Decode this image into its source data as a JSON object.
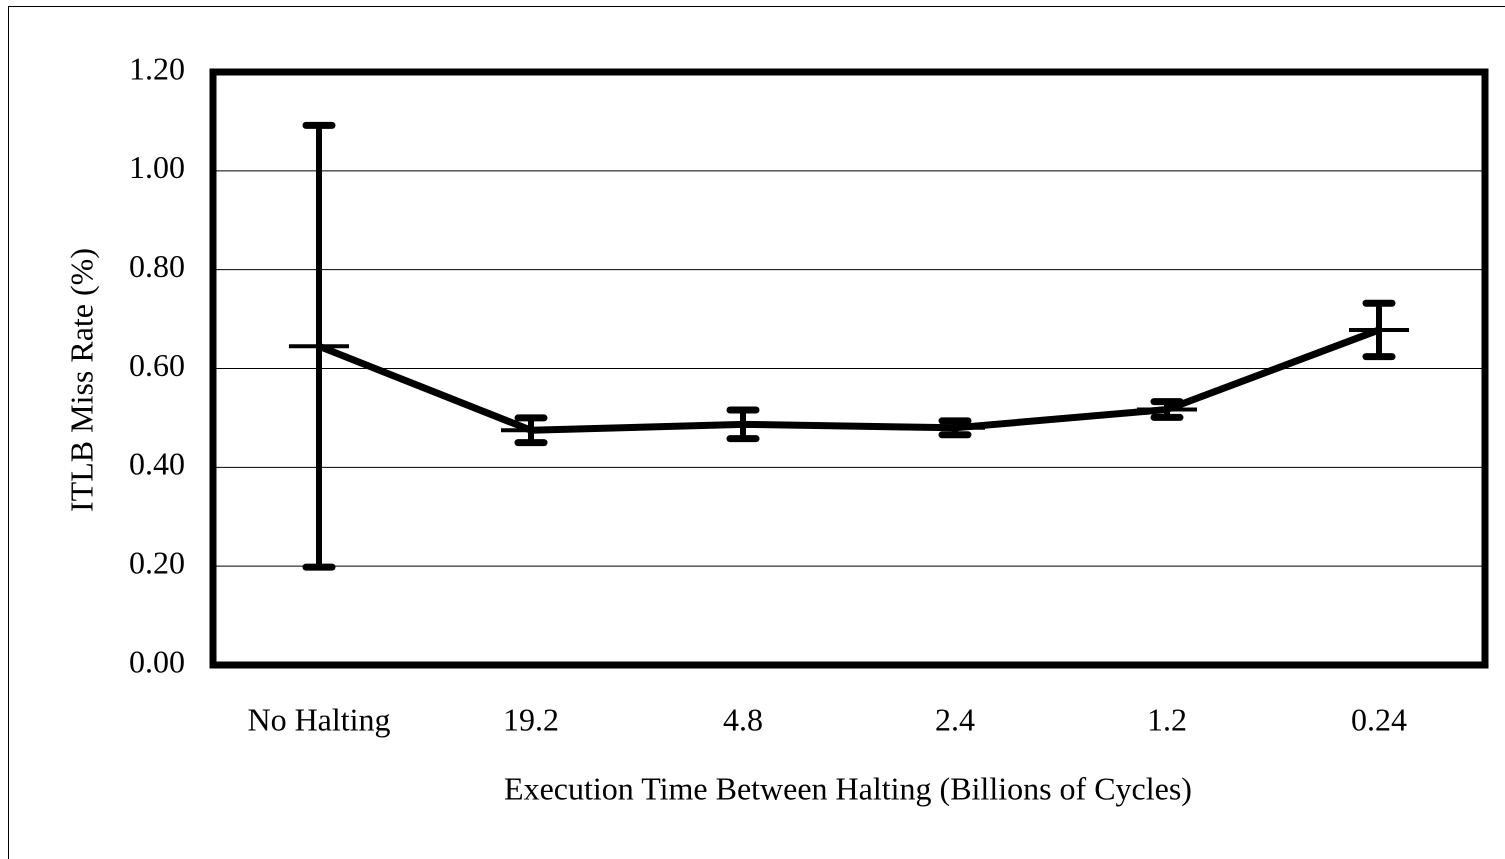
{
  "chart_data": {
    "type": "line",
    "y_label": "ITLB Miss Rate (%)",
    "x_label": "Execution Time Between Halting (Billions of Cycles)",
    "categories": [
      "No Halting",
      "19.2",
      "4.8",
      "2.4",
      "1.2",
      "0.24"
    ],
    "values": [
      0.645,
      0.475,
      0.487,
      0.48,
      0.517,
      0.678
    ],
    "errors": [
      0.447,
      0.025,
      0.029,
      0.014,
      0.016,
      0.054
    ],
    "color": "#000000",
    "ylim": [
      0,
      1.2
    ],
    "yticks": [
      {
        "value": 0,
        "label": "0.00"
      },
      {
        "value": 0.2,
        "label": "0.20"
      },
      {
        "value": 0.4,
        "label": "0.40"
      },
      {
        "value": 0.6,
        "label": "0.60"
      },
      {
        "value": 0.8,
        "label": "0.80"
      },
      {
        "value": 1,
        "label": "1.00"
      },
      {
        "value": 1.2,
        "label": "1.20"
      }
    ],
    "grid": true
  }
}
